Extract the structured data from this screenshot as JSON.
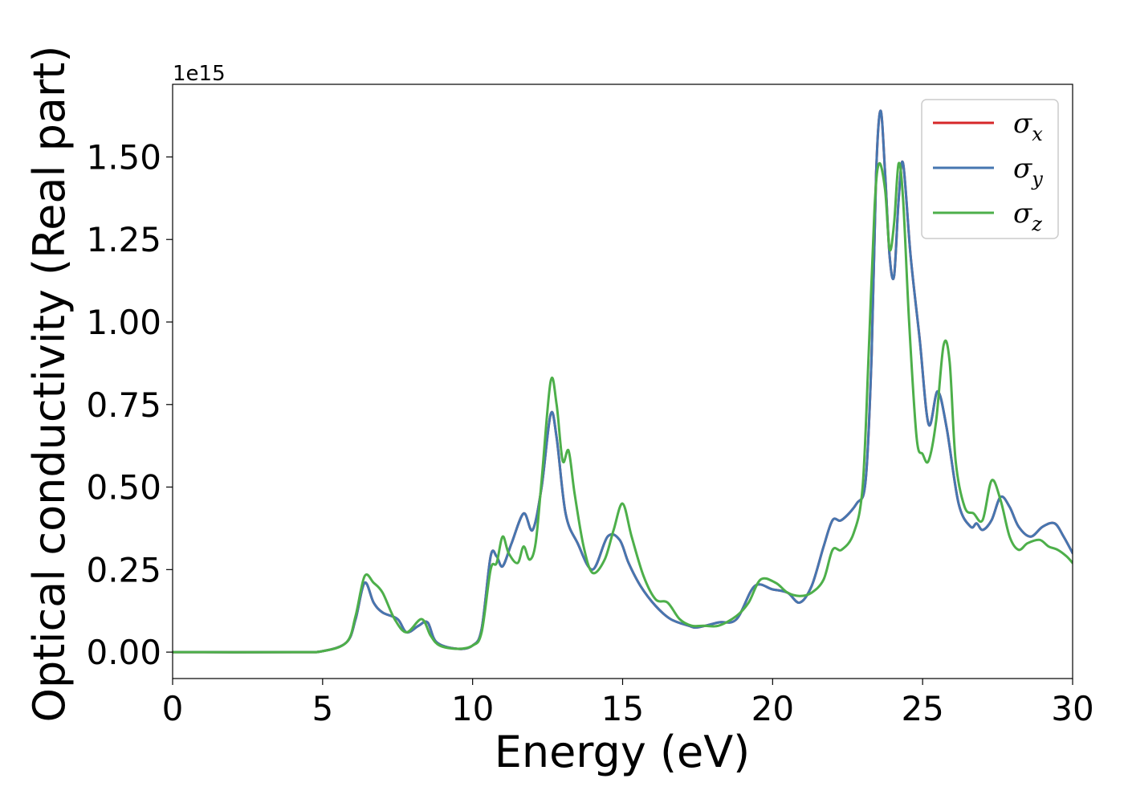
{
  "chart_data": {
    "type": "line",
    "title": "",
    "xlabel": "Energy (eV)",
    "ylabel": "Optical conductivity (Real part)",
    "offset_label": "1e15",
    "xlim": [
      0,
      30
    ],
    "ylim": [
      -0.08,
      1.72
    ],
    "xticks": [
      0,
      5,
      10,
      15,
      20,
      25,
      30
    ],
    "xtick_labels": [
      "0",
      "5",
      "10",
      "15",
      "20",
      "25",
      "30"
    ],
    "yticks": [
      0.0,
      0.25,
      0.5,
      0.75,
      1.0,
      1.25,
      1.5
    ],
    "ytick_labels": [
      "0.00",
      "0.25",
      "0.50",
      "0.75",
      "1.00",
      "1.25",
      "1.50"
    ],
    "grid": false,
    "legend_position": "top-right",
    "series": [
      {
        "name": "σ",
        "subscript": "x",
        "color": "#d62728",
        "x": [
          0,
          4,
          5,
          5.8,
          6.1,
          6.4,
          6.7,
          7.0,
          7.5,
          7.8,
          8.2,
          8.5,
          8.8,
          9.5,
          10.0,
          10.3,
          10.6,
          10.8,
          11.0,
          11.3,
          11.7,
          12.0,
          12.3,
          12.6,
          12.8,
          13.1,
          13.5,
          14.0,
          14.5,
          14.9,
          15.2,
          15.6,
          16.1,
          16.6,
          17.2,
          17.5,
          18.2,
          18.8,
          19.4,
          20.0,
          20.5,
          20.9,
          21.3,
          21.7,
          22.0,
          22.3,
          22.8,
          23.1,
          23.3,
          23.45,
          23.6,
          23.75,
          23.9,
          24.05,
          24.2,
          24.35,
          24.6,
          24.9,
          25.2,
          25.5,
          25.8,
          26.2,
          26.6,
          26.8,
          27.0,
          27.3,
          27.6,
          27.9,
          28.2,
          28.6,
          29.0,
          29.4,
          29.7,
          30.0
        ],
        "values": [
          0.0,
          0.0,
          0.003,
          0.03,
          0.1,
          0.21,
          0.15,
          0.12,
          0.1,
          0.06,
          0.08,
          0.09,
          0.03,
          0.01,
          0.02,
          0.07,
          0.29,
          0.29,
          0.26,
          0.33,
          0.42,
          0.37,
          0.5,
          0.72,
          0.65,
          0.42,
          0.33,
          0.25,
          0.35,
          0.34,
          0.27,
          0.2,
          0.14,
          0.1,
          0.08,
          0.075,
          0.09,
          0.1,
          0.2,
          0.19,
          0.18,
          0.15,
          0.2,
          0.32,
          0.4,
          0.4,
          0.45,
          0.52,
          0.9,
          1.45,
          1.64,
          1.45,
          1.2,
          1.14,
          1.37,
          1.48,
          1.2,
          0.95,
          0.69,
          0.79,
          0.68,
          0.45,
          0.38,
          0.39,
          0.37,
          0.4,
          0.47,
          0.44,
          0.38,
          0.35,
          0.38,
          0.39,
          0.35,
          0.3
        ]
      },
      {
        "name": "σ",
        "subscript": "y",
        "color": "#4676b0",
        "x": [
          0,
          4,
          5,
          5.8,
          6.1,
          6.4,
          6.7,
          7.0,
          7.5,
          7.8,
          8.2,
          8.5,
          8.8,
          9.5,
          10.0,
          10.3,
          10.6,
          10.8,
          11.0,
          11.3,
          11.7,
          12.0,
          12.3,
          12.6,
          12.8,
          13.1,
          13.5,
          14.0,
          14.5,
          14.9,
          15.2,
          15.6,
          16.1,
          16.6,
          17.2,
          17.5,
          18.2,
          18.8,
          19.4,
          20.0,
          20.5,
          20.9,
          21.3,
          21.7,
          22.0,
          22.3,
          22.8,
          23.1,
          23.3,
          23.45,
          23.6,
          23.75,
          23.9,
          24.05,
          24.2,
          24.35,
          24.6,
          24.9,
          25.2,
          25.5,
          25.8,
          26.2,
          26.6,
          26.8,
          27.0,
          27.3,
          27.6,
          27.9,
          28.2,
          28.6,
          29.0,
          29.4,
          29.7,
          30.0
        ],
        "values": [
          0.0,
          0.0,
          0.003,
          0.03,
          0.1,
          0.21,
          0.15,
          0.12,
          0.1,
          0.06,
          0.08,
          0.09,
          0.03,
          0.01,
          0.02,
          0.07,
          0.29,
          0.29,
          0.26,
          0.33,
          0.42,
          0.37,
          0.5,
          0.72,
          0.65,
          0.42,
          0.33,
          0.25,
          0.35,
          0.34,
          0.27,
          0.2,
          0.14,
          0.1,
          0.08,
          0.075,
          0.09,
          0.1,
          0.2,
          0.19,
          0.18,
          0.15,
          0.2,
          0.32,
          0.4,
          0.4,
          0.45,
          0.52,
          0.9,
          1.45,
          1.64,
          1.45,
          1.2,
          1.14,
          1.37,
          1.48,
          1.2,
          0.95,
          0.69,
          0.79,
          0.68,
          0.45,
          0.38,
          0.39,
          0.37,
          0.4,
          0.47,
          0.44,
          0.38,
          0.35,
          0.38,
          0.39,
          0.35,
          0.3
        ]
      },
      {
        "name": "σ",
        "subscript": "z",
        "color": "#4daf4a",
        "x": [
          0,
          4,
          5,
          5.8,
          6.1,
          6.4,
          6.7,
          7.0,
          7.4,
          7.8,
          8.3,
          8.6,
          8.9,
          9.5,
          10.0,
          10.3,
          10.6,
          10.8,
          11.0,
          11.2,
          11.5,
          11.7,
          11.9,
          12.1,
          12.3,
          12.6,
          12.8,
          13.0,
          13.2,
          13.4,
          13.7,
          14.0,
          14.4,
          14.7,
          15.0,
          15.3,
          15.7,
          16.1,
          16.5,
          16.9,
          17.3,
          17.7,
          18.2,
          18.8,
          19.2,
          19.6,
          20.1,
          20.5,
          20.9,
          21.3,
          21.7,
          22.0,
          22.3,
          22.7,
          23.0,
          23.2,
          23.4,
          23.55,
          23.75,
          23.9,
          24.05,
          24.2,
          24.35,
          24.55,
          24.8,
          25.0,
          25.2,
          25.45,
          25.7,
          25.9,
          26.1,
          26.4,
          26.7,
          27.0,
          27.3,
          27.6,
          27.9,
          28.2,
          28.5,
          28.9,
          29.2,
          29.5,
          29.8,
          30.0
        ],
        "values": [
          0.0,
          0.0,
          0.003,
          0.03,
          0.11,
          0.23,
          0.21,
          0.18,
          0.1,
          0.06,
          0.1,
          0.05,
          0.02,
          0.01,
          0.02,
          0.06,
          0.25,
          0.27,
          0.35,
          0.3,
          0.27,
          0.32,
          0.28,
          0.33,
          0.52,
          0.82,
          0.75,
          0.58,
          0.61,
          0.48,
          0.32,
          0.24,
          0.28,
          0.37,
          0.45,
          0.35,
          0.23,
          0.16,
          0.15,
          0.1,
          0.08,
          0.08,
          0.08,
          0.11,
          0.15,
          0.22,
          0.21,
          0.18,
          0.17,
          0.18,
          0.22,
          0.31,
          0.31,
          0.36,
          0.5,
          0.9,
          1.35,
          1.48,
          1.4,
          1.22,
          1.3,
          1.48,
          1.37,
          1.0,
          0.65,
          0.6,
          0.58,
          0.7,
          0.93,
          0.88,
          0.58,
          0.44,
          0.42,
          0.4,
          0.52,
          0.46,
          0.35,
          0.31,
          0.33,
          0.34,
          0.32,
          0.31,
          0.29,
          0.27
        ]
      }
    ]
  }
}
